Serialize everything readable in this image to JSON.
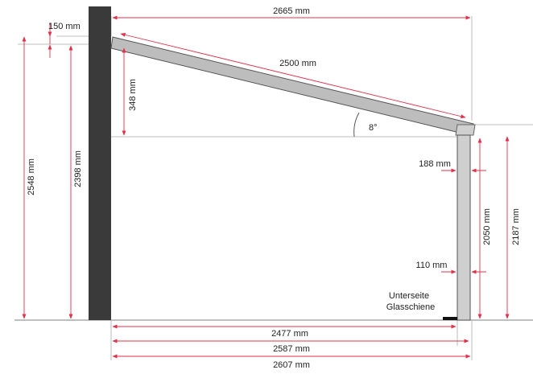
{
  "colors": {
    "wall": "#3a3a3a",
    "beam_fill": "#bdbdbd",
    "beam_stroke": "#555555",
    "post_fill": "#cfcfcf",
    "dimension_line": "#e2304a",
    "ground_line": "#999999",
    "helper_line": "#aaaaaa",
    "glass_rail": "#111111"
  },
  "dimensions": {
    "total_width_top": "2665 mm",
    "rafter_offset_top": "150 mm",
    "rafter_length": "2500 mm",
    "rise_height": "348 mm",
    "roof_angle": "8°",
    "wall_height_total": "2548 mm",
    "wall_height_rafter": "2398 mm",
    "post_inset_top": "188 mm",
    "post_inset_bottom": "110 mm",
    "post_clear_height": "2050 mm",
    "post_total_height": "2187 mm",
    "width_1": "2477 mm",
    "width_2": "2587 mm",
    "width_3": "2607 mm"
  },
  "labels": {
    "glass_rail_line1": "Unterseite",
    "glass_rail_line2": "Glasschiene"
  }
}
